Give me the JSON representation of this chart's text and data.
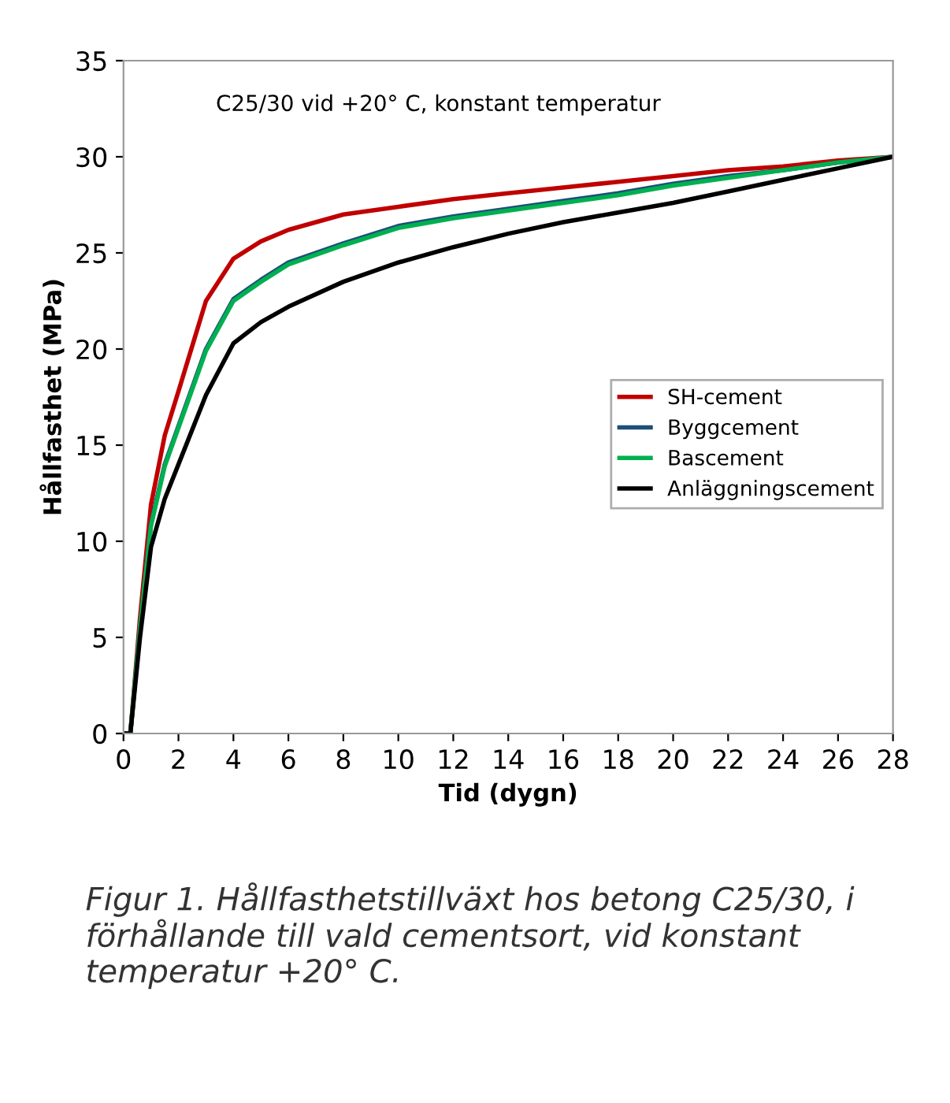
{
  "chart_data": {
    "type": "line",
    "subtitle": "C25/30 vid +20° C, konstant temperatur",
    "xlabel": "Tid (dygn)",
    "ylabel": "Hållfasthet (MPa)",
    "x": [
      0,
      0.25,
      0.6,
      1,
      1.5,
      2,
      3,
      4,
      5,
      6,
      8,
      10,
      12,
      14,
      16,
      18,
      20,
      22,
      24,
      26,
      28
    ],
    "series": [
      {
        "name": "SH-cement",
        "color": "#c00000",
        "values": [
          0,
          0,
          6,
          11.9,
          15.5,
          17.8,
          22.5,
          24.7,
          25.6,
          26.2,
          27,
          27.4,
          27.8,
          28.1,
          28.4,
          28.7,
          29,
          29.3,
          29.5,
          29.8,
          30
        ]
      },
      {
        "name": "Byggcement",
        "color": "#1f4e79",
        "values": [
          0,
          0,
          5.5,
          10.9,
          14,
          16,
          20,
          22.6,
          23.6,
          24.5,
          25.5,
          26.4,
          26.9,
          27.3,
          27.7,
          28.1,
          28.6,
          29,
          29.3,
          29.7,
          30
        ]
      },
      {
        "name": "Bascement",
        "color": "#00b050",
        "values": [
          0,
          0,
          5.5,
          10.8,
          13.9,
          15.9,
          19.9,
          22.5,
          23.5,
          24.4,
          25.4,
          26.3,
          26.8,
          27.2,
          27.6,
          28,
          28.5,
          28.9,
          29.3,
          29.7,
          30
        ]
      },
      {
        "name": "Anläggningscement",
        "color": "#000000",
        "values": [
          0,
          0,
          5,
          9.7,
          12.2,
          14,
          17.6,
          20.3,
          21.4,
          22.2,
          23.5,
          24.5,
          25.3,
          26,
          26.6,
          27.1,
          27.6,
          28.2,
          28.8,
          29.4,
          30
        ]
      }
    ],
    "xlim": [
      0,
      28
    ],
    "xticks": [
      0,
      2,
      4,
      6,
      8,
      10,
      12,
      14,
      16,
      18,
      20,
      22,
      24,
      26,
      28
    ],
    "ylim": [
      0,
      35
    ],
    "yticks": [
      0,
      5,
      10,
      15,
      20,
      25,
      30,
      35
    ],
    "legend": "right",
    "grid": false,
    "marker": "none",
    "line_style": "solid",
    "annotations": [
      "Figur 1. Hållfasthetstillväxt hos betong C25/30, i förhållande till vald cementsort, vid konstant temperatur +20° C."
    ]
  }
}
